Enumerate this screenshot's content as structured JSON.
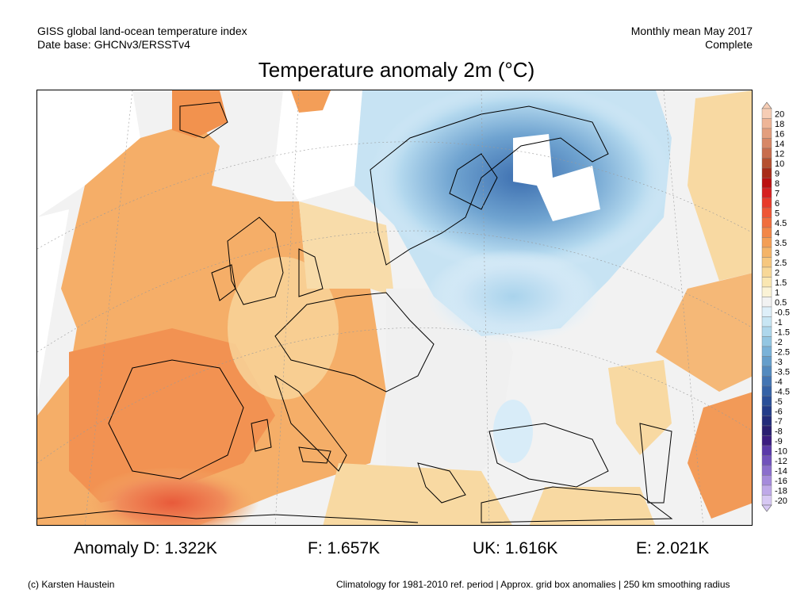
{
  "header": {
    "left_line1": "GISS global land-ocean temperature index",
    "left_line2": "Date base: GHCNv3/ERSSTv4",
    "right_line1": "Monthly mean May 2017",
    "right_line2": "Complete"
  },
  "title": "Temperature anomaly 2m (°C)",
  "legend": {
    "labels": [
      "20",
      "18",
      "16",
      "14",
      "12",
      "10",
      "9",
      "8",
      "7",
      "6",
      "5",
      "4.5",
      "4",
      "3.5",
      "3",
      "2.5",
      "2",
      "1.5",
      "1",
      "0.5",
      "-0.5",
      "-1",
      "-1.5",
      "-2",
      "-2.5",
      "-3",
      "-3.5",
      "-4",
      "-4.5",
      "-5",
      "-6",
      "-7",
      "-8",
      "-9",
      "-10",
      "-12",
      "-14",
      "-16",
      "-18",
      "-20"
    ],
    "colors": [
      "#f6cdb5",
      "#eeb597",
      "#e39e7d",
      "#d78766",
      "#c86d4d",
      "#b55030",
      "#a82b18",
      "#bb1010",
      "#d62020",
      "#e83a2a",
      "#ee5535",
      "#f06e3e",
      "#f28748",
      "#f39e55",
      "#f4b468",
      "#f6c77f",
      "#f8d898",
      "#fae7b2",
      "#fbf3d6",
      "#f2f2f2",
      "#deeff9",
      "#c8e6f4",
      "#aed7ec",
      "#93c6e2",
      "#7ab2d8",
      "#659ecb",
      "#538abf",
      "#4375b3",
      "#3562a6",
      "#2a4f98",
      "#233c89",
      "#232c7a",
      "#2a1f70",
      "#3b1d80",
      "#5a3aa8",
      "#7152bb",
      "#8b6ecc",
      "#a58bdb",
      "#bfa9e8",
      "#d7c8f3"
    ]
  },
  "stats": {
    "d": "Anomaly D: 1.322K",
    "f": "F: 1.657K",
    "uk": "UK: 1.616K",
    "e": "E: 2.021K"
  },
  "footer": {
    "credit": "(c) Karsten Haustein",
    "note": "Climatology for 1981-2010 ref. period | Approx. grid box anomalies | 250 km smoothing radius"
  }
}
